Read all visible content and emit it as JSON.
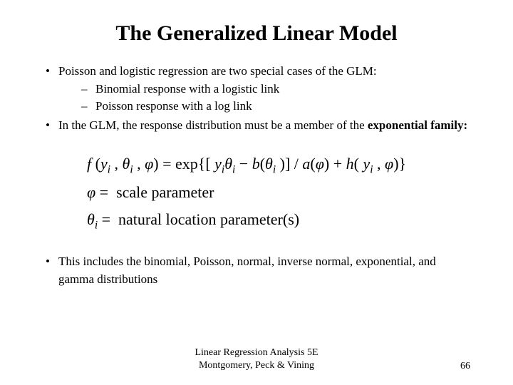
{
  "title": "The Generalized Linear Model",
  "bullets": {
    "b1": "Poisson and logistic regression are two special cases of the GLM:",
    "b1a": "Binomial response with a logistic link",
    "b1b": "Poisson response with a log link",
    "b2a": "In the GLM, the response distribution must be a member of the ",
    "b2b": "exponential family:",
    "b3": "This includes the binomial, Poisson, normal, inverse normal, exponential, and gamma distributions"
  },
  "equations": {
    "line1_html": "f (y<sub>i</sub> , θ<sub>i</sub> , φ) = exp{[ y<sub>i</sub>θ<sub>i</sub> − b(θ<sub>i</sub> )] / a(φ) + h( y<sub>i</sub> , φ)}",
    "line2": "φ =  scale parameter",
    "line3": "θᵢ =  natural location parameter(s)"
  },
  "footer": {
    "line1": "Linear Regression Analysis 5E",
    "line2": "Montgomery, Peck & Vining"
  },
  "page_number": "66",
  "styling": {
    "background_color": "#ffffff",
    "text_color": "#000000",
    "title_fontsize": 30,
    "body_fontsize": 17,
    "equation_fontsize": 22,
    "footer_fontsize": 14,
    "font_family": "Times New Roman"
  }
}
